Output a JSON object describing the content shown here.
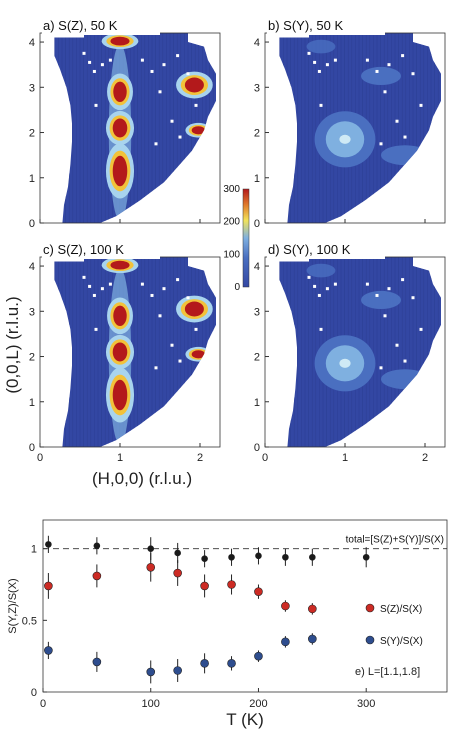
{
  "maps": {
    "panels": [
      {
        "title": "a) S(Z), 50 K",
        "pattern": "SZ"
      },
      {
        "title": "b) S(Y), 50 K",
        "pattern": "SY"
      },
      {
        "title": "c) S(Z), 100 K",
        "pattern": "SZ"
      },
      {
        "title": "d) S(Y), 100 K",
        "pattern": "SY"
      }
    ],
    "xlabel": "(H,0,0) (r.l.u.)",
    "ylabel": "(0,0,L) (r.l.u.)",
    "xticks": [
      "0",
      "1",
      "2"
    ],
    "yticks": [
      "0",
      "1",
      "2",
      "3",
      "4"
    ],
    "colorbar": {
      "ticks": [
        "300",
        "200",
        "100",
        "0"
      ],
      "range": [
        0,
        300
      ],
      "colors": [
        "#3347a3",
        "#4a6fc0",
        "#7fb0e0",
        "#f2e35a",
        "#e07a2c",
        "#b3191b"
      ]
    }
  },
  "chart_data": {
    "type": "scatter",
    "xlabel": "T (K)",
    "ylabel": "S(Y,Z)/S(X)",
    "xlim": [
      0,
      375
    ],
    "ylim": [
      0,
      1.2
    ],
    "xticks": [
      "0",
      "100",
      "200",
      "300"
    ],
    "yticks": [
      "0",
      "0.5",
      "1"
    ],
    "reference_line": {
      "y": 1.0,
      "label": "total=[S(Z)+S(Y)]/S(X)",
      "style": "dashed"
    },
    "annotation": "e) L=[1.1,1.8]",
    "series": [
      {
        "name": "total",
        "color": "#1a1a1a",
        "x": [
          5,
          50,
          100,
          125,
          150,
          175,
          200,
          225,
          250,
          300
        ],
        "y": [
          1.03,
          1.02,
          1.0,
          0.97,
          0.93,
          0.94,
          0.95,
          0.94,
          0.94,
          0.94
        ],
        "err": [
          0.06,
          0.06,
          0.08,
          0.07,
          0.06,
          0.06,
          0.06,
          0.06,
          0.06,
          0.07
        ]
      },
      {
        "name": "S(Z)/S(X)",
        "color": "#cc2b24",
        "x": [
          5,
          50,
          100,
          125,
          150,
          175,
          200,
          225,
          250
        ],
        "y": [
          0.74,
          0.81,
          0.87,
          0.83,
          0.74,
          0.75,
          0.7,
          0.6,
          0.58
        ],
        "err": [
          0.09,
          0.08,
          0.1,
          0.09,
          0.08,
          0.07,
          0.05,
          0.04,
          0.04
        ]
      },
      {
        "name": "S(Y)/S(X)",
        "color": "#2e4d8e",
        "x": [
          5,
          50,
          100,
          125,
          150,
          175,
          200,
          225,
          250
        ],
        "y": [
          0.29,
          0.21,
          0.14,
          0.15,
          0.2,
          0.2,
          0.25,
          0.35,
          0.37
        ],
        "err": [
          0.06,
          0.07,
          0.08,
          0.08,
          0.07,
          0.05,
          0.04,
          0.04,
          0.04
        ]
      }
    ]
  }
}
